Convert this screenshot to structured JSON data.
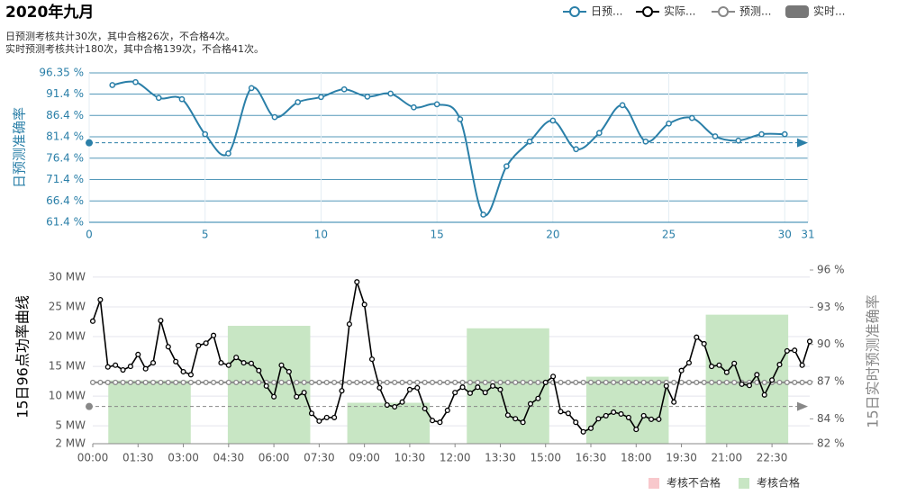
{
  "title": "2020年九月",
  "notes": [
    "日预测考核共计30次，其中合格26次，不合格4次。",
    "实时预测考核共计180次，其中合格139次，不合格41次。"
  ],
  "chart_data": [
    {
      "type": "line",
      "y_label": "日预测准确率",
      "x": [
        1,
        2,
        3,
        4,
        5,
        6,
        7,
        8,
        9,
        10,
        11,
        12,
        13,
        14,
        15,
        16,
        17,
        18,
        19,
        20,
        21,
        22,
        23,
        24,
        25,
        26,
        27,
        28,
        29,
        30
      ],
      "series": [
        {
          "name": "日预...",
          "color": "#2a7fa8",
          "values": [
            93.5,
            94.2,
            90.5,
            90.2,
            82,
            77.5,
            92.8,
            86,
            89.5,
            90.7,
            92.5,
            90.8,
            91.5,
            88.3,
            89,
            85.5,
            63.2,
            74.5,
            80.3,
            85.2,
            78.5,
            82.3,
            88.8,
            80.3,
            84.5,
            85.8,
            81.5,
            80.5,
            82,
            82
          ]
        }
      ],
      "threshold": 80,
      "xlim": [
        0,
        31
      ],
      "xticks": [
        0,
        5,
        10,
        15,
        20,
        25,
        30,
        31
      ],
      "ylim": [
        61.4,
        96.35
      ],
      "yticks": [
        {
          "value": 61.4,
          "label": "61.4 %"
        },
        {
          "value": 66.4,
          "label": "66.4 %"
        },
        {
          "value": 71.4,
          "label": "71.4 %"
        },
        {
          "value": 76.4,
          "label": "76.4 %"
        },
        {
          "value": 81.4,
          "label": "81.4 %"
        },
        {
          "value": 86.4,
          "label": "86.4 %"
        },
        {
          "value": 91.4,
          "label": "91.4 %"
        },
        {
          "value": 96.35,
          "label": "96.35 %"
        }
      ],
      "grid": true
    },
    {
      "type": "line-bar",
      "y_label": "15日96点功率曲线",
      "y2_label": "15日实时预测准确率",
      "categories": [
        "00:00",
        null,
        null,
        null,
        null,
        null,
        "01:30",
        null,
        null,
        null,
        null,
        null,
        "03:00",
        null,
        null,
        null,
        null,
        null,
        "04:30",
        null,
        null,
        null,
        null,
        null,
        "06:00",
        null,
        null,
        null,
        null,
        null,
        "07:30",
        null,
        null,
        null,
        null,
        null,
        "09:00",
        null,
        null,
        null,
        null,
        null,
        "10:30",
        null,
        null,
        null,
        null,
        null,
        "12:00",
        null,
        null,
        null,
        null,
        null,
        "13:30",
        null,
        null,
        null,
        null,
        null,
        "15:00",
        null,
        null,
        null,
        null,
        null,
        "16:30",
        null,
        null,
        null,
        null,
        null,
        "18:00",
        null,
        null,
        null,
        null,
        null,
        "19:30",
        null,
        null,
        null,
        null,
        null,
        "21:00",
        null,
        null,
        null,
        null,
        null,
        "22:30",
        null,
        null,
        null,
        null,
        null
      ],
      "series": [
        {
          "name": "实际...",
          "color": "#000000",
          "values": [
            22.6,
            26.2,
            14.9,
            15.2,
            14.4,
            15,
            17,
            14.6,
            15.6,
            22.7,
            18.3,
            15.8,
            14.1,
            13.6,
            18.5,
            18.9,
            20.2,
            15.6,
            15.2,
            16.5,
            15.6,
            15.5,
            14.3,
            11.7,
            9.9,
            15.2,
            14.1,
            9.9,
            10.6,
            7.1,
            5.8,
            6.4,
            6.4,
            10.9,
            22.1,
            29.2,
            25.4,
            16.2,
            11.4,
            8.5,
            8.2,
            9,
            11.1,
            11.4,
            7.9,
            5.9,
            5.6,
            7.6,
            10.6,
            11.5,
            10.5,
            11.5,
            10.6,
            11.7,
            11.1,
            6.8,
            6.2,
            5.6,
            8.7,
            9.6,
            12.3,
            13.3,
            7.4,
            7.1,
            5.6,
            4,
            4.6,
            6.2,
            6.7,
            7.3,
            7,
            6.4,
            4.4,
            6.7,
            6.1,
            6.1,
            11.7,
            9,
            14.3,
            15.6,
            19.9,
            18.8,
            15,
            15.2,
            14,
            15.5,
            12,
            11.8,
            13.6,
            10.2,
            12.7,
            15.3,
            17.6,
            17.7,
            15.2,
            19.2
          ]
        },
        {
          "name": "预测...",
          "color": "#888888",
          "values": [
            12.3,
            12.3,
            12.3,
            12.3,
            12.3,
            12.3,
            12.3,
            12.3,
            12.3,
            12.3,
            12.3,
            12.3,
            12.3,
            12.3,
            12.3,
            12.3,
            12.3,
            12.3,
            12.3,
            12.3,
            12.3,
            12.3,
            12.3,
            12.3,
            12.3,
            12.3,
            12.3,
            12.3,
            12.3,
            12.3,
            12.3,
            12.3,
            12.3,
            12.3,
            12.3,
            12.3,
            12.3,
            12.3,
            12.3,
            12.3,
            12.3,
            12.3,
            12.3,
            12.3,
            12.3,
            12.3,
            12.3,
            12.3,
            12.3,
            12.3,
            12.3,
            12.3,
            12.3,
            12.3,
            12.3,
            12.3,
            12.3,
            12.3,
            12.3,
            12.3,
            12.3,
            12.3,
            12.3,
            12.3,
            12.3,
            12.3,
            12.3,
            12.3,
            12.3,
            12.3,
            12.3,
            12.3,
            12.3,
            12.3,
            12.3,
            12.3,
            12.3,
            12.3,
            12.3,
            12.3,
            12.3,
            12.3,
            12.3,
            12.3,
            12.3,
            12.3,
            12.3,
            12.3,
            12.3,
            12.3,
            12.3,
            12.3,
            12.3,
            12.3,
            12.3,
            12.3
          ]
        }
      ],
      "bars": {
        "name": "实时...",
        "axis": "y2",
        "legend_color": "#777777",
        "values": [
          87.1,
          91.5,
          85.3,
          91.3,
          87.4,
          92.4
        ],
        "colors": [
          "#c8e6c4",
          "#c8e6c4",
          "#c8e6c4",
          "#c8e6c4",
          "#c8e6c4",
          "#c8e6c4"
        ]
      },
      "status_legend": [
        {
          "label": "考核不合格",
          "color": "#f8c8cc"
        },
        {
          "label": "考核合格",
          "color": "#c8e6c4"
        }
      ],
      "threshold": 85,
      "threshold_axis": "y2",
      "ylim": [
        2,
        31.2
      ],
      "yticks": [
        {
          "value": 2,
          "label": "2 MW"
        },
        {
          "value": 5,
          "label": "5 MW"
        },
        {
          "value": 10,
          "label": "10 MW"
        },
        {
          "value": 15,
          "label": "15 MW"
        },
        {
          "value": 20,
          "label": "20 MW"
        },
        {
          "value": 25,
          "label": "25 MW"
        },
        {
          "value": 30,
          "label": "30 MW"
        }
      ],
      "y2lim": [
        82,
        96
      ],
      "y2ticks": [
        {
          "value": 82,
          "label": "82 %"
        },
        {
          "value": 84,
          "label": "84 %"
        },
        {
          "value": 87,
          "label": "87 %"
        },
        {
          "value": 90,
          "label": "90 %"
        },
        {
          "value": 93,
          "label": "93 %"
        },
        {
          "value": 96,
          "label": "96 %"
        }
      ],
      "grid": true
    }
  ]
}
